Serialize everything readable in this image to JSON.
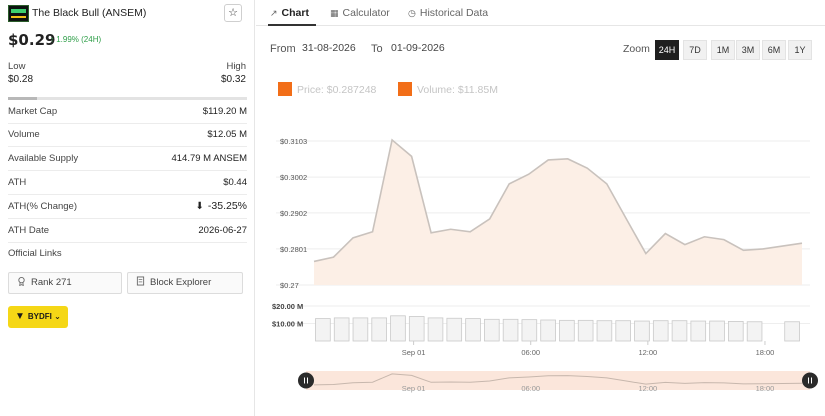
{
  "coin": {
    "name": "The Black Bull (ANSEM)",
    "price": "$0.29",
    "change": "1.99% (24H)",
    "low_label": "Low",
    "low_value": "$0.28",
    "high_label": "High",
    "high_value": "$0.32",
    "range_position": 0.12
  },
  "stats": [
    {
      "label": "Market Cap",
      "value": "$119.20 M"
    },
    {
      "label": "Volume",
      "value": "$12.05 M"
    },
    {
      "label": "Available Supply",
      "value": "414.79 M ANSEM"
    },
    {
      "label": "ATH",
      "value": "$0.44"
    },
    {
      "label": "ATH(% Change)",
      "value": "-35.25%"
    },
    {
      "label": "ATH Date",
      "value": "2026-06-27"
    }
  ],
  "official_links_label": "Official Links",
  "buttons": {
    "rank": "Rank 271",
    "explorer": "Block Explorer",
    "exchange": "BYDFI"
  },
  "tabs": [
    {
      "label": "Chart",
      "active": true,
      "icon": "chart-line-icon"
    },
    {
      "label": "Calculator",
      "active": false,
      "icon": "calculator-icon"
    },
    {
      "label": "Historical Data",
      "active": false,
      "icon": "clock-icon"
    }
  ],
  "range": {
    "from_label": "From",
    "from": "31-08-2026",
    "to_label": "To",
    "to": "01-09-2026"
  },
  "zoom": {
    "label": "Zoom",
    "options": [
      "24H",
      "7D",
      "1M",
      "3M",
      "6M",
      "1Y"
    ],
    "active": "24H"
  },
  "legend": {
    "price": "Price: $0.287248",
    "volume": "Volume: $11.85M"
  },
  "colors": {
    "accent_orange": "#f26e18",
    "area_fill": "#fcefe6",
    "line": "#c9c2bd",
    "positive": "#2e9e48"
  },
  "chart_data": {
    "type": "area",
    "x_ticks": [
      "Sep 01",
      "06:00",
      "12:00",
      "18:00"
    ],
    "price_axis": {
      "ticks": [
        "$0.3103",
        "$0.3002",
        "$0.2902",
        "$0.2801",
        "$0.27"
      ],
      "tick_values": [
        0.3103,
        0.3002,
        0.2902,
        0.2801,
        0.27
      ],
      "ylim": [
        0.27,
        0.3103
      ]
    },
    "price": [
      0.2766,
      0.2778,
      0.2832,
      0.2849,
      0.3106,
      0.306,
      0.2846,
      0.2856,
      0.2849,
      0.2885,
      0.2983,
      0.301,
      0.305,
      0.3053,
      0.3027,
      0.2983,
      0.2885,
      0.2788,
      0.2844,
      0.2813,
      0.2835,
      0.2827,
      0.2797,
      0.2801,
      0.2809,
      0.2817
    ],
    "volume_axis": {
      "ticks": [
        "$20.00 M",
        "$10.00 M"
      ],
      "tick_values": [
        20,
        10
      ],
      "ylim": [
        0,
        20
      ]
    },
    "volume": [
      12.8,
      13.2,
      13.2,
      13.2,
      14.4,
      14.0,
      13.2,
      13.0,
      12.8,
      12.4,
      12.4,
      12.2,
      12.0,
      11.8,
      11.8,
      11.6,
      11.6,
      11.4,
      11.6,
      11.6,
      11.4,
      11.4,
      11.2,
      11.0,
      10.8,
      11.0
    ],
    "volume_gap_index": 24,
    "navigator_ticks": [
      "Sep 01",
      "06:00",
      "12:00",
      "18:00"
    ]
  }
}
